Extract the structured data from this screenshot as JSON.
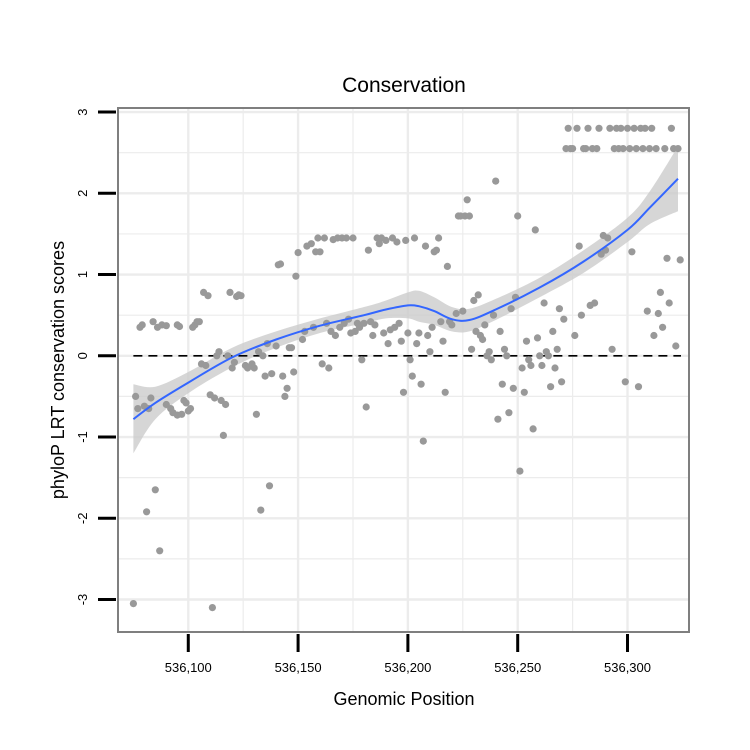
{
  "chart_data": {
    "type": "scatter",
    "title": "Conservation",
    "xlabel": "Genomic Position",
    "ylabel": "phyloP LRT conservation scores",
    "xlim": [
      536068,
      536328
    ],
    "ylim": [
      -3.4,
      3.05
    ],
    "x_ticks": [
      536100,
      536150,
      536200,
      536250,
      536300
    ],
    "x_tick_labels": [
      "536,100",
      "536,150",
      "536,200",
      "536,250",
      "536,300"
    ],
    "y_ticks": [
      -3,
      -2,
      -1,
      0,
      1,
      2,
      3
    ],
    "y_tick_labels": [
      "-3",
      "-2",
      "-1",
      "0",
      "1",
      "2",
      "3"
    ],
    "reference_line": {
      "y": 0,
      "style": "dashed"
    },
    "grid": true,
    "colors": {
      "points": "#999999",
      "smooth_line": "#3366ff",
      "ribbon": "#cccccc",
      "grid": "#ececec",
      "frame": "#7f7f7f"
    },
    "points": [
      [
        536075,
        -3.05
      ],
      [
        536076,
        -0.5
      ],
      [
        536077,
        -0.65
      ],
      [
        536078,
        0.35
      ],
      [
        536079,
        0.38
      ],
      [
        536080,
        -0.62
      ],
      [
        536081,
        -1.92
      ],
      [
        536082,
        -0.65
      ],
      [
        536083,
        -0.52
      ],
      [
        536084,
        0.42
      ],
      [
        536085,
        -1.65
      ],
      [
        536086,
        0.35
      ],
      [
        536087,
        -2.4
      ],
      [
        536088,
        0.38
      ],
      [
        536090,
        0.37
      ],
      [
        536090,
        -0.6
      ],
      [
        536092,
        -0.65
      ],
      [
        536093,
        -0.7
      ],
      [
        536095,
        0.38
      ],
      [
        536095,
        -0.73
      ],
      [
        536096,
        0.36
      ],
      [
        536097,
        -0.72
      ],
      [
        536098,
        -0.55
      ],
      [
        536099,
        -0.58
      ],
      [
        536100,
        -0.68
      ],
      [
        536101,
        -0.65
      ],
      [
        536102,
        0.35
      ],
      [
        536103,
        0.38
      ],
      [
        536104,
        0.42
      ],
      [
        536105,
        0.42
      ],
      [
        536106,
        -0.1
      ],
      [
        536107,
        0.78
      ],
      [
        536108,
        -0.12
      ],
      [
        536109,
        0.74
      ],
      [
        536110,
        -0.48
      ],
      [
        536111,
        -3.1
      ],
      [
        536112,
        -0.52
      ],
      [
        536113,
        0.0
      ],
      [
        536114,
        0.05
      ],
      [
        536115,
        -0.55
      ],
      [
        536116,
        -0.98
      ],
      [
        536117,
        -0.6
      ],
      [
        536118,
        0.0
      ],
      [
        536119,
        0.78
      ],
      [
        536120,
        -0.15
      ],
      [
        536121,
        -0.08
      ],
      [
        536122,
        0.73
      ],
      [
        536123,
        0.75
      ],
      [
        536124,
        0.74
      ],
      [
        536126,
        -0.12
      ],
      [
        536127,
        -0.15
      ],
      [
        536129,
        -0.1
      ],
      [
        536130,
        -0.15
      ],
      [
        536131,
        -0.72
      ],
      [
        536132,
        0.05
      ],
      [
        536133,
        -1.9
      ],
      [
        536134,
        0.0
      ],
      [
        536135,
        -0.25
      ],
      [
        536136,
        0.15
      ],
      [
        536137,
        -1.6
      ],
      [
        536138,
        -0.22
      ],
      [
        536140,
        0.12
      ],
      [
        536141,
        1.12
      ],
      [
        536142,
        1.13
      ],
      [
        536143,
        -0.25
      ],
      [
        536144,
        -0.5
      ],
      [
        536145,
        -0.4
      ],
      [
        536146,
        0.1
      ],
      [
        536147,
        0.1
      ],
      [
        536148,
        -0.2
      ],
      [
        536149,
        0.98
      ],
      [
        536150,
        1.27
      ],
      [
        536152,
        0.2
      ],
      [
        536153,
        0.3
      ],
      [
        536154,
        1.35
      ],
      [
        536156,
        1.38
      ],
      [
        536157,
        0.35
      ],
      [
        536158,
        1.28
      ],
      [
        536159,
        1.45
      ],
      [
        536160,
        1.28
      ],
      [
        536161,
        -0.1
      ],
      [
        536162,
        1.45
      ],
      [
        536163,
        0.4
      ],
      [
        536164,
        -0.15
      ],
      [
        536165,
        0.3
      ],
      [
        536166,
        1.43
      ],
      [
        536167,
        0.25
      ],
      [
        536168,
        1.45
      ],
      [
        536169,
        0.35
      ],
      [
        536170,
        1.45
      ],
      [
        536171,
        0.4
      ],
      [
        536172,
        1.45
      ],
      [
        536173,
        0.45
      ],
      [
        536174,
        0.28
      ],
      [
        536175,
        1.45
      ],
      [
        536176,
        0.3
      ],
      [
        536177,
        0.4
      ],
      [
        536178,
        0.35
      ],
      [
        536179,
        -0.05
      ],
      [
        536180,
        0.4
      ],
      [
        536181,
        -0.63
      ],
      [
        536182,
        1.3
      ],
      [
        536183,
        0.42
      ],
      [
        536184,
        0.25
      ],
      [
        536185,
        0.38
      ],
      [
        536186,
        1.45
      ],
      [
        536187,
        1.38
      ],
      [
        536188,
        1.45
      ],
      [
        536189,
        0.28
      ],
      [
        536190,
        1.42
      ],
      [
        536191,
        0.15
      ],
      [
        536192,
        0.32
      ],
      [
        536193,
        1.45
      ],
      [
        536194,
        0.35
      ],
      [
        536195,
        1.4
      ],
      [
        536196,
        0.4
      ],
      [
        536197,
        0.18
      ],
      [
        536198,
        -0.45
      ],
      [
        536199,
        1.42
      ],
      [
        536200,
        0.28
      ],
      [
        536201,
        -0.05
      ],
      [
        536202,
        -0.25
      ],
      [
        536203,
        1.45
      ],
      [
        536204,
        0.15
      ],
      [
        536205,
        0.28
      ],
      [
        536206,
        -0.35
      ],
      [
        536207,
        -1.05
      ],
      [
        536208,
        1.35
      ],
      [
        536209,
        0.25
      ],
      [
        536210,
        0.05
      ],
      [
        536211,
        0.35
      ],
      [
        536212,
        1.28
      ],
      [
        536213,
        1.3
      ],
      [
        536214,
        1.45
      ],
      [
        536215,
        0.42
      ],
      [
        536216,
        0.18
      ],
      [
        536217,
        -0.45
      ],
      [
        536218,
        1.1
      ],
      [
        536219,
        0.42
      ],
      [
        536220,
        0.38
      ],
      [
        536222,
        0.52
      ],
      [
        536223,
        1.72
      ],
      [
        536224,
        1.72
      ],
      [
        536225,
        0.55
      ],
      [
        536226,
        1.72
      ],
      [
        536227,
        1.92
      ],
      [
        536228,
        1.72
      ],
      [
        536229,
        0.08
      ],
      [
        536230,
        0.68
      ],
      [
        536231,
        0.3
      ],
      [
        536232,
        0.75
      ],
      [
        536233,
        0.25
      ],
      [
        536234,
        0.2
      ],
      [
        536235,
        0.38
      ],
      [
        536236,
        0.0
      ],
      [
        536237,
        0.05
      ],
      [
        536238,
        -0.05
      ],
      [
        536239,
        0.5
      ],
      [
        536240,
        2.15
      ],
      [
        536241,
        -0.78
      ],
      [
        536242,
        0.3
      ],
      [
        536243,
        -0.35
      ],
      [
        536244,
        0.08
      ],
      [
        536245,
        0.0
      ],
      [
        536246,
        -0.7
      ],
      [
        536247,
        0.58
      ],
      [
        536248,
        -0.4
      ],
      [
        536249,
        0.72
      ],
      [
        536250,
        1.72
      ],
      [
        536251,
        -1.42
      ],
      [
        536252,
        -0.15
      ],
      [
        536253,
        -0.45
      ],
      [
        536254,
        0.18
      ],
      [
        536255,
        -0.05
      ],
      [
        536256,
        -0.12
      ],
      [
        536257,
        -0.9
      ],
      [
        536258,
        1.55
      ],
      [
        536259,
        0.22
      ],
      [
        536260,
        0.0
      ],
      [
        536261,
        -0.12
      ],
      [
        536262,
        0.65
      ],
      [
        536263,
        0.05
      ],
      [
        536264,
        0.0
      ],
      [
        536265,
        -0.38
      ],
      [
        536266,
        0.3
      ],
      [
        536267,
        -0.15
      ],
      [
        536268,
        0.08
      ],
      [
        536269,
        0.58
      ],
      [
        536270,
        -0.32
      ],
      [
        536271,
        0.45
      ],
      [
        536272,
        2.55
      ],
      [
        536273,
        2.8
      ],
      [
        536274,
        2.55
      ],
      [
        536275,
        2.55
      ],
      [
        536276,
        0.25
      ],
      [
        536277,
        2.8
      ],
      [
        536278,
        1.35
      ],
      [
        536279,
        0.5
      ],
      [
        536280,
        2.55
      ],
      [
        536281,
        2.55
      ],
      [
        536282,
        2.8
      ],
      [
        536283,
        0.62
      ],
      [
        536284,
        2.55
      ],
      [
        536285,
        0.65
      ],
      [
        536286,
        2.55
      ],
      [
        536287,
        2.8
      ],
      [
        536288,
        1.25
      ],
      [
        536289,
        1.48
      ],
      [
        536290,
        1.3
      ],
      [
        536291,
        1.45
      ],
      [
        536292,
        2.8
      ],
      [
        536293,
        0.08
      ],
      [
        536294,
        2.55
      ],
      [
        536295,
        2.8
      ],
      [
        536296,
        2.55
      ],
      [
        536297,
        2.8
      ],
      [
        536298,
        2.55
      ],
      [
        536299,
        -0.32
      ],
      [
        536300,
        2.8
      ],
      [
        536301,
        2.55
      ],
      [
        536302,
        1.28
      ],
      [
        536303,
        2.8
      ],
      [
        536304,
        2.55
      ],
      [
        536305,
        -0.38
      ],
      [
        536306,
        2.8
      ],
      [
        536307,
        2.55
      ],
      [
        536308,
        2.8
      ],
      [
        536309,
        0.55
      ],
      [
        536310,
        2.55
      ],
      [
        536311,
        2.8
      ],
      [
        536312,
        0.25
      ],
      [
        536313,
        2.55
      ],
      [
        536314,
        0.52
      ],
      [
        536315,
        0.78
      ],
      [
        536316,
        0.35
      ],
      [
        536317,
        2.55
      ],
      [
        536318,
        1.2
      ],
      [
        536319,
        0.65
      ],
      [
        536320,
        2.8
      ],
      [
        536321,
        2.55
      ],
      [
        536322,
        0.12
      ],
      [
        536323,
        2.55
      ],
      [
        536324,
        1.18
      ]
    ],
    "smooth": {
      "x": [
        536075,
        536085,
        536100,
        536120,
        536140,
        536160,
        536180,
        536190,
        536200,
        536205,
        536212,
        536220,
        536228,
        536240,
        536260,
        536280,
        536300,
        536310,
        536323
      ],
      "y": [
        -0.78,
        -0.58,
        -0.33,
        -0.02,
        0.2,
        0.37,
        0.5,
        0.57,
        0.62,
        0.61,
        0.55,
        0.45,
        0.44,
        0.57,
        0.84,
        1.16,
        1.55,
        1.82,
        2.18
      ],
      "upper": [
        -0.35,
        -0.38,
        -0.2,
        0.1,
        0.3,
        0.46,
        0.6,
        0.68,
        0.78,
        0.8,
        0.72,
        0.6,
        0.58,
        0.7,
        0.96,
        1.3,
        1.7,
        2.02,
        2.58
      ],
      "lower": [
        -1.2,
        -0.78,
        -0.46,
        -0.14,
        0.1,
        0.28,
        0.4,
        0.46,
        0.46,
        0.42,
        0.38,
        0.3,
        0.3,
        0.44,
        0.72,
        1.02,
        1.4,
        1.62,
        1.78
      ]
    }
  }
}
